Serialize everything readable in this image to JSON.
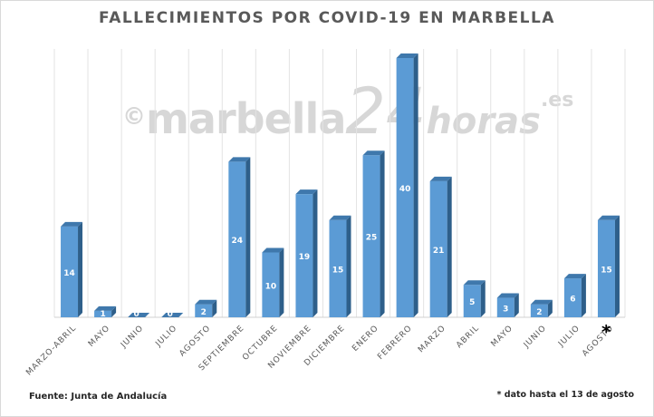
{
  "chart_data": {
    "type": "bar",
    "title": "FALLECIMIENTOS POR COVID-19 EN MARBELLA",
    "categories": [
      "MARZO-ABRIL",
      "MAYO",
      "JUNIO",
      "JULIO",
      "AGOSTO",
      "SEPTIEMBRE",
      "OCTUBRE",
      "NOVIEMBRE",
      "DICIEMBRE",
      "ENERO",
      "FEBRERO",
      "MARZO",
      "ABRIL",
      "MAYO",
      "JUNIO",
      "JULIO",
      "AGOSTO"
    ],
    "values": [
      14,
      1,
      0,
      0,
      2,
      24,
      10,
      19,
      15,
      25,
      40,
      21,
      5,
      3,
      2,
      6,
      15
    ],
    "ylim": [
      0,
      40
    ],
    "grid": "vertical",
    "bar_color": "#5b9bd5",
    "bar_side_color": "#2e5f8a",
    "bar_top_color": "#3f78ac",
    "label_color": "#ffffff"
  },
  "watermark": {
    "copyright": "©",
    "brand": "marbella",
    "number": "24",
    "suffix": "horas",
    "tld": ".es"
  },
  "footer": {
    "source": "Fuente: Junta de Andalucía",
    "note": "* dato hasta el 13 de agosto",
    "last_bar_mark": "*"
  }
}
